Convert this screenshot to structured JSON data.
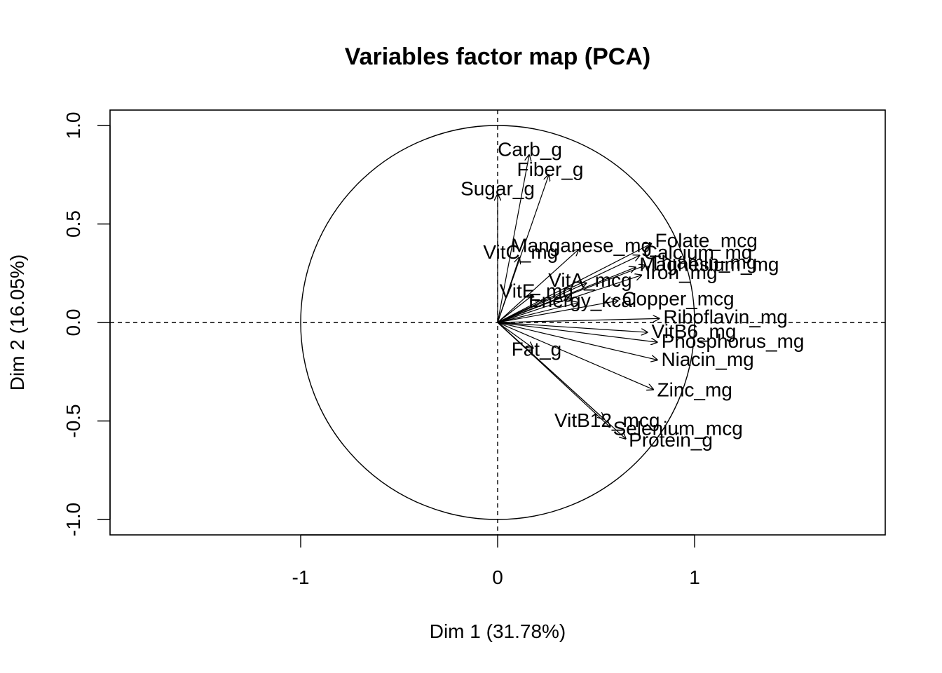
{
  "chart_data": {
    "type": "scatter",
    "title": "Variables factor map (PCA)",
    "xlabel": "Dim 1 (31.78%)",
    "ylabel": "Dim 2 (16.05%)",
    "xlim": [
      -1.97,
      1.97
    ],
    "ylim": [
      -1.08,
      1.08
    ],
    "xticks": [
      -1,
      0,
      1
    ],
    "yticks": [
      -1.0,
      -0.5,
      0.0,
      0.5,
      1.0
    ],
    "xtick_labels": [
      "-1",
      "0",
      "1"
    ],
    "ytick_labels": [
      "-1.0",
      "-0.5",
      "0.0",
      "0.5",
      "1.0"
    ],
    "unit_circle": true,
    "reference_lines": "dashed at x=0 and y=0",
    "grid": false,
    "legend": "none",
    "colors": {
      "foreground": "#000000",
      "background": "#ffffff"
    },
    "variables": [
      {
        "name": "Carb_g",
        "x": 0.16,
        "y": 0.85
      },
      {
        "name": "Fiber_g",
        "x": 0.26,
        "y": 0.75
      },
      {
        "name": "Sugar_g",
        "x": 0.0,
        "y": 0.65
      },
      {
        "name": "VitC_mg",
        "x": 0.11,
        "y": 0.33
      },
      {
        "name": "Manganese_mg",
        "x": 0.41,
        "y": 0.37
      },
      {
        "name": "Calcium_mg",
        "x": 0.72,
        "y": 0.34
      },
      {
        "name": "Folate_mcg",
        "x": 0.78,
        "y": 0.4
      },
      {
        "name": "Magnesium_mg",
        "x": 0.7,
        "y": 0.28
      },
      {
        "name": "Thiamin_mg",
        "x": 0.75,
        "y": 0.29
      },
      {
        "name": "VitE_mg",
        "x": 0.18,
        "y": 0.14
      },
      {
        "name": "VitA_mcg",
        "x": 0.45,
        "y": 0.2
      },
      {
        "name": "Iron_mg",
        "x": 0.73,
        "y": 0.24
      },
      {
        "name": "Energy_kcal",
        "x": 0.41,
        "y": 0.1
      },
      {
        "name": "Copper_mcg",
        "x": 0.61,
        "y": 0.11
      },
      {
        "name": "Riboflavin_mg",
        "x": 0.82,
        "y": 0.02
      },
      {
        "name": "VitB6_mg",
        "x": 0.76,
        "y": -0.05
      },
      {
        "name": "Phosphorus_mg",
        "x": 0.81,
        "y": -0.1
      },
      {
        "name": "Fat_g",
        "x": 0.18,
        "y": -0.13
      },
      {
        "name": "Niacin_mg",
        "x": 0.81,
        "y": -0.19
      },
      {
        "name": "Zinc_mg",
        "x": 0.79,
        "y": -0.34
      },
      {
        "name": "VitB12_mcg",
        "x": 0.54,
        "y": -0.49
      },
      {
        "name": "Selenium_mcg",
        "x": 0.57,
        "y": -0.53
      },
      {
        "name": "Protein_g",
        "x": 0.65,
        "y": -0.59
      }
    ]
  }
}
